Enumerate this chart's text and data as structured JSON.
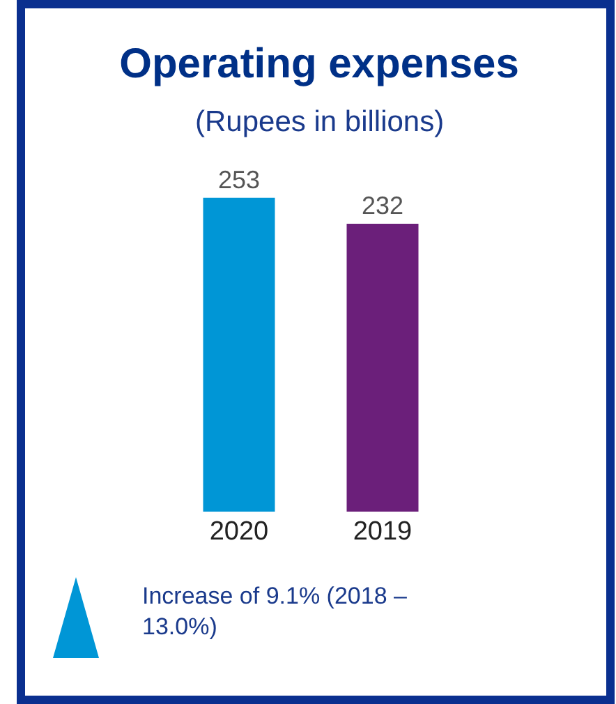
{
  "chart_data": {
    "type": "bar",
    "title": "Operating expenses",
    "subtitle": "(Rupees in billions)",
    "categories": [
      "2020",
      "2019"
    ],
    "values": [
      253,
      232
    ],
    "colors": [
      "#0096d6",
      "#6b1f7a"
    ],
    "data_labels": true,
    "annotations": [
      "Increase of 9.1% (2018 – 13.0%)"
    ]
  }
}
